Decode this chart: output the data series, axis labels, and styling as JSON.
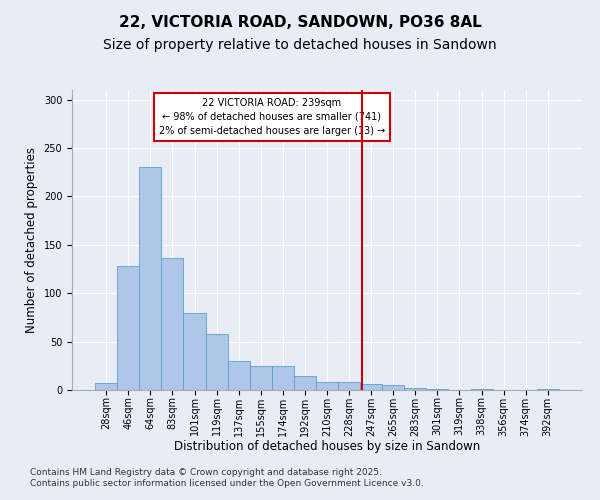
{
  "title": "22, VICTORIA ROAD, SANDOWN, PO36 8AL",
  "subtitle": "Size of property relative to detached houses in Sandown",
  "xlabel": "Distribution of detached houses by size in Sandown",
  "ylabel": "Number of detached properties",
  "footnote1": "Contains HM Land Registry data © Crown copyright and database right 2025.",
  "footnote2": "Contains public sector information licensed under the Open Government Licence v3.0.",
  "bar_labels": [
    "28sqm",
    "46sqm",
    "64sqm",
    "83sqm",
    "101sqm",
    "119sqm",
    "137sqm",
    "155sqm",
    "174sqm",
    "192sqm",
    "210sqm",
    "228sqm",
    "247sqm",
    "265sqm",
    "283sqm",
    "301sqm",
    "319sqm",
    "338sqm",
    "356sqm",
    "374sqm",
    "392sqm"
  ],
  "bar_values": [
    7,
    128,
    230,
    136,
    80,
    58,
    30,
    25,
    25,
    14,
    8,
    8,
    6,
    5,
    2,
    1,
    0,
    1,
    0,
    0,
    1
  ],
  "bar_color": "#aec6e8",
  "bar_edge_color": "#5a9fd4",
  "vline_color": "#cc0000",
  "annotation_title": "22 VICTORIA ROAD: 239sqm",
  "annotation_line1": "← 98% of detached houses are smaller (741)",
  "annotation_line2": "2% of semi-detached houses are larger (13) →",
  "annotation_box_color": "#cc0000",
  "ylim": [
    0,
    310
  ],
  "yticks": [
    0,
    50,
    100,
    150,
    200,
    250,
    300
  ],
  "background_color": "#e8edf5",
  "grid_color": "#ffffff",
  "title_fontsize": 11,
  "subtitle_fontsize": 10,
  "axis_label_fontsize": 8.5,
  "tick_fontsize": 7,
  "footnote_fontsize": 6.5
}
